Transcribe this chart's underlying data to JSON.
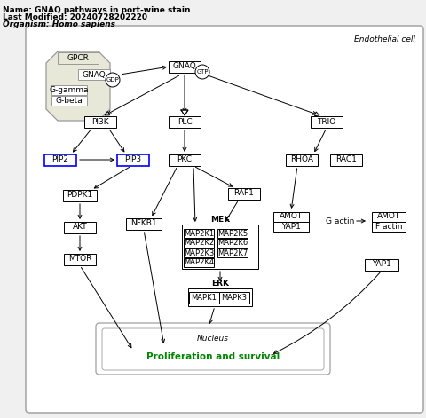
{
  "title": "Name: GNAQ pathways in port-wine stain",
  "last_modified": "Last Modified: 20240728202220",
  "organism": "Organism: Homo sapiens",
  "endothelial_label": "Endothelial cell",
  "nucleus_label": "Nucleus",
  "proliferation_label": "Proliferation and survival",
  "bg_color": "#f0f0f0",
  "blue_border": "#0000ff",
  "green_text": "#008800"
}
